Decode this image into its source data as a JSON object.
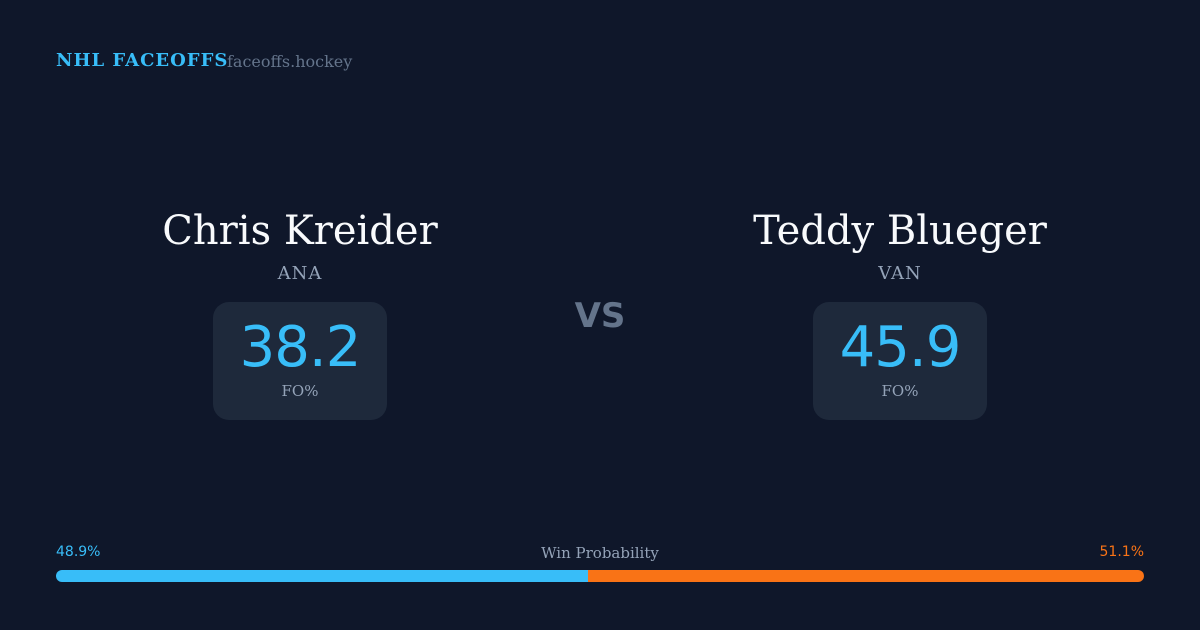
{
  "header": {
    "brand": "NHL FACEOFFS",
    "site": "faceoffs.hockey"
  },
  "players": [
    {
      "name": "Chris Kreider",
      "team": "ANA",
      "stat_value": "38.2",
      "stat_label": "FO%"
    },
    {
      "name": "Teddy Blueger",
      "team": "VAN",
      "stat_value": "45.9",
      "stat_label": "FO%"
    }
  ],
  "vs": "VS",
  "win_probability": {
    "label": "Win Probability",
    "left_label": "48.9%",
    "right_label": "51.1%",
    "left_percent": 48.9,
    "right_percent": 51.1
  },
  "colors": {
    "background": "#0f172a",
    "card": "#1e293b",
    "accent_blue": "#38bdf8",
    "accent_orange": "#f97316",
    "muted": "#94a3b8"
  }
}
